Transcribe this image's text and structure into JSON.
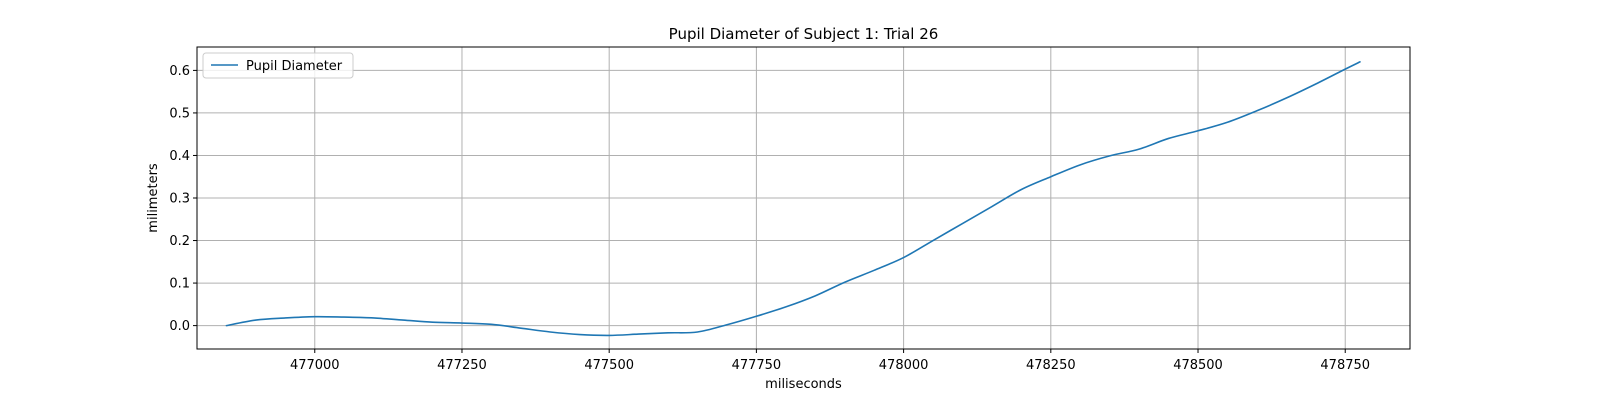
{
  "chart_data": {
    "type": "line",
    "title": "Pupil Diameter of Subject 1: Trial 26",
    "xlabel": "miliseconds",
    "ylabel": "milimeters",
    "xlim": [
      476800,
      478860
    ],
    "ylim": [
      -0.055,
      0.655
    ],
    "xticks": [
      477000,
      477250,
      477500,
      477750,
      478000,
      478250,
      478500,
      478750
    ],
    "yticks": [
      0.0,
      0.1,
      0.2,
      0.3,
      0.4,
      0.5,
      0.6
    ],
    "ytick_labels": [
      "0.0",
      "0.1",
      "0.2",
      "0.3",
      "0.4",
      "0.5",
      "0.6"
    ],
    "grid": true,
    "legend": {
      "position": "upper-left"
    },
    "series": [
      {
        "name": "Pupil Diameter",
        "color": "#1f77b4",
        "x": [
          476850,
          476900,
          476950,
          477000,
          477050,
          477100,
          477150,
          477200,
          477250,
          477300,
          477350,
          477400,
          477450,
          477500,
          477550,
          477600,
          477650,
          477700,
          477750,
          477800,
          477850,
          477900,
          477950,
          478000,
          478050,
          478100,
          478150,
          478200,
          478250,
          478300,
          478350,
          478400,
          478450,
          478500,
          478550,
          478600,
          478650,
          478700,
          478750,
          478775
        ],
        "y": [
          0.0,
          0.013,
          0.018,
          0.021,
          0.02,
          0.018,
          0.013,
          0.008,
          0.006,
          0.003,
          -0.006,
          -0.015,
          -0.021,
          -0.023,
          -0.02,
          -0.017,
          -0.015,
          0.002,
          0.022,
          0.044,
          0.07,
          0.102,
          0.13,
          0.16,
          0.2,
          0.24,
          0.28,
          0.32,
          0.35,
          0.378,
          0.399,
          0.415,
          0.44,
          0.458,
          0.478,
          0.505,
          0.535,
          0.568,
          0.603,
          0.62
        ]
      }
    ]
  }
}
